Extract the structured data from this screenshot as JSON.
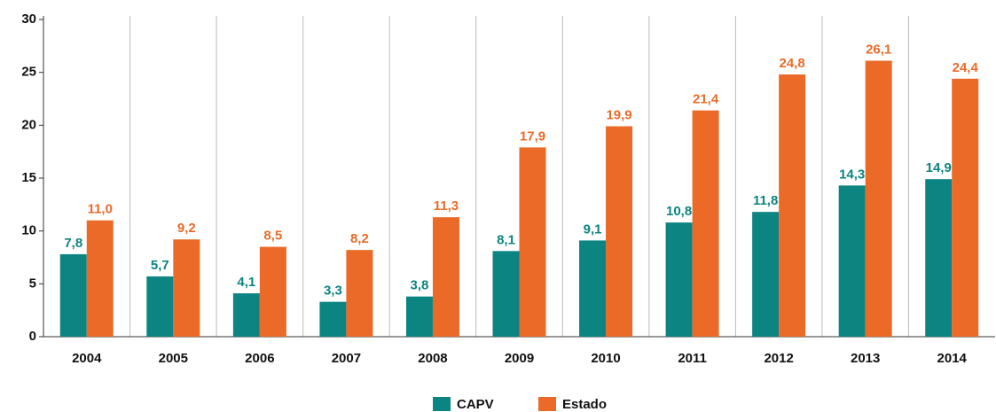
{
  "chart_data": {
    "type": "bar",
    "categories": [
      "2004",
      "2005",
      "2006",
      "2007",
      "2008",
      "2009",
      "2010",
      "2011",
      "2012",
      "2013",
      "2014"
    ],
    "series": [
      {
        "name": "CAPV",
        "color": "#0b8482",
        "values": [
          7.8,
          5.7,
          4.1,
          3.3,
          3.8,
          8.1,
          9.1,
          10.8,
          11.8,
          14.3,
          14.9
        ],
        "value_labels": [
          "7,8",
          "5,7",
          "4,1",
          "3,3",
          "3,8",
          "8,1",
          "9,1",
          "10,8",
          "11,8",
          "14,3",
          "14,9"
        ]
      },
      {
        "name": "Estado",
        "color": "#eb6a27",
        "values": [
          11.0,
          9.2,
          8.5,
          8.2,
          11.3,
          17.9,
          19.9,
          21.4,
          24.8,
          26.1,
          24.4
        ],
        "value_labels": [
          "11,0",
          "9,2",
          "8,5",
          "8,2",
          "11,3",
          "17,9",
          "19,9",
          "21,4",
          "24,8",
          "26,1",
          "24,4"
        ]
      }
    ],
    "ylim": [
      0,
      30
    ],
    "yticks": [
      0,
      5,
      10,
      15,
      20,
      25,
      30
    ],
    "legend": "bottom"
  }
}
